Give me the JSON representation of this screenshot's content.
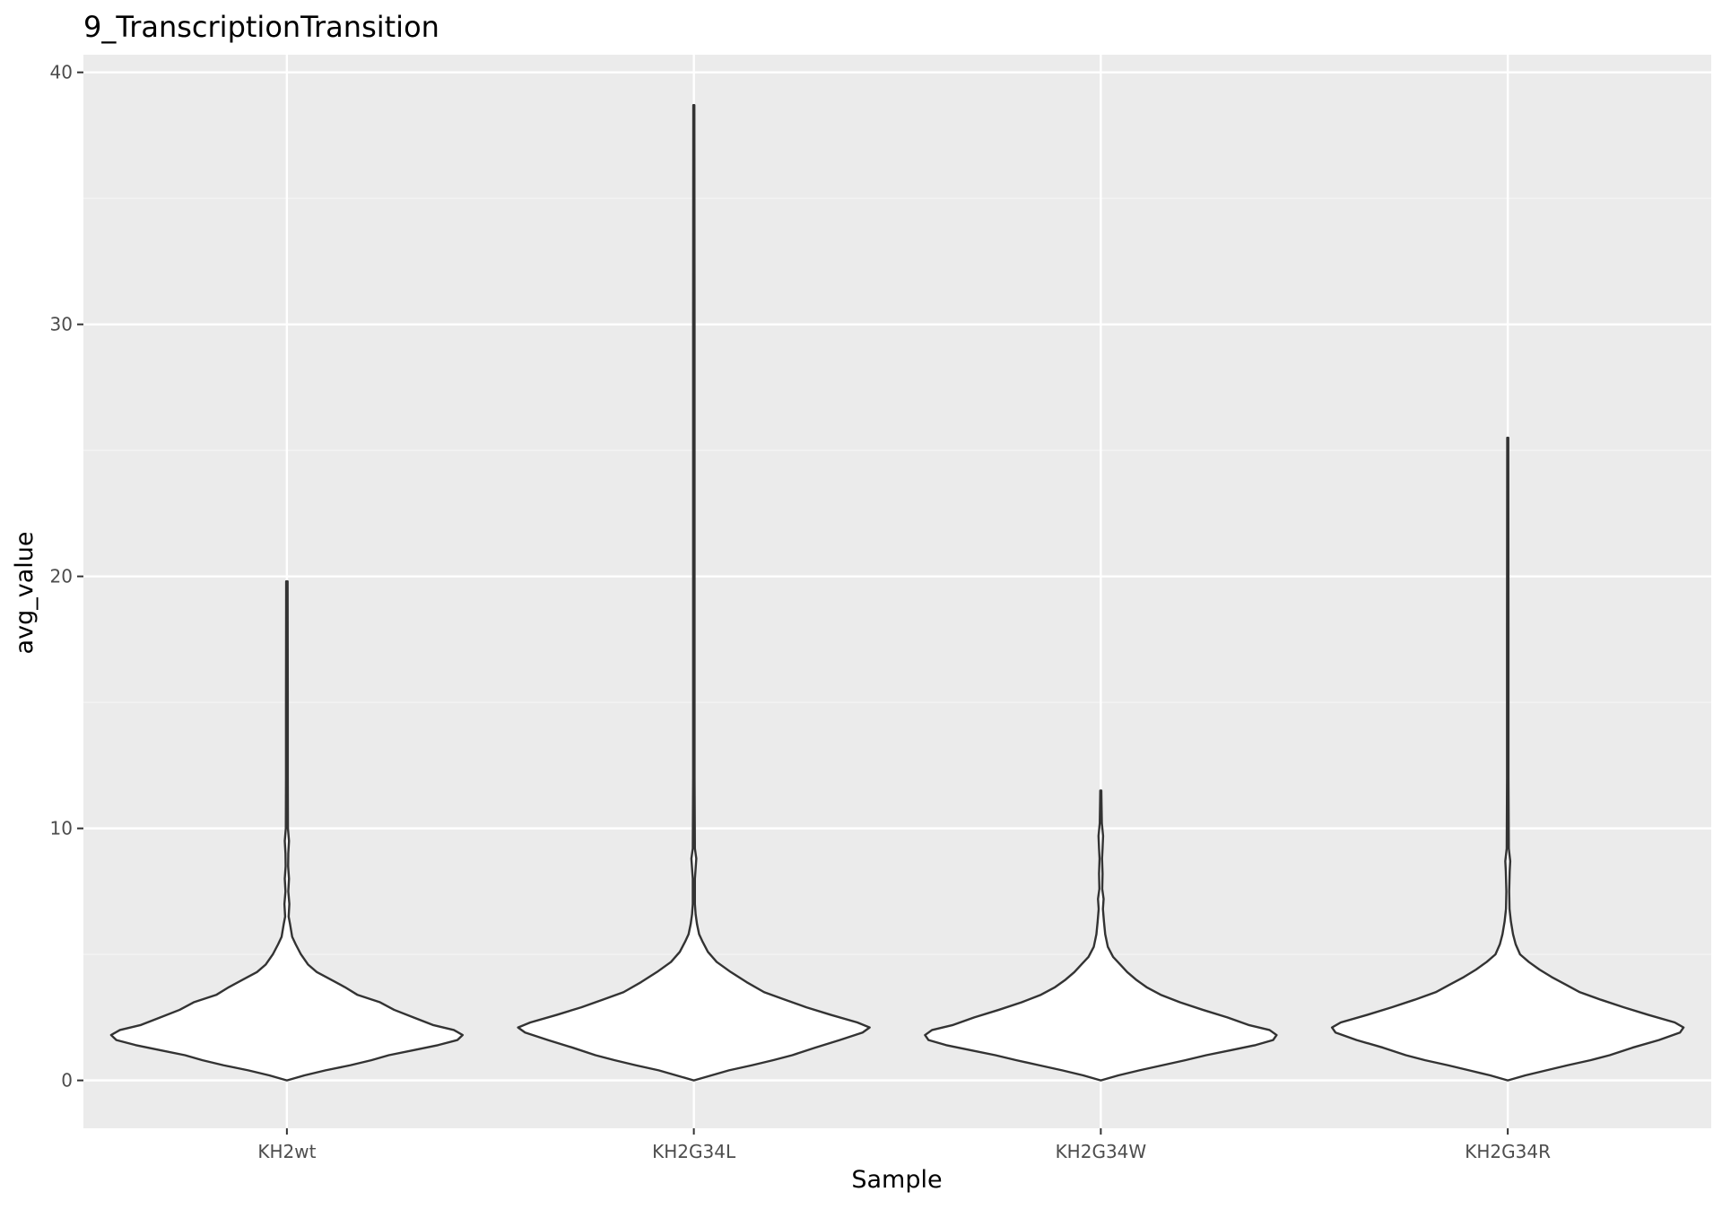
{
  "chart_data": {
    "type": "violin",
    "title": "9_TranscriptionTransition",
    "xlabel": "Sample",
    "ylabel": "avg_value",
    "categories": [
      "KH2wt",
      "KH2G34L",
      "KH2G34W",
      "KH2G34R"
    ],
    "ylim": [
      -1.9,
      40.7
    ],
    "yticks": [
      0,
      10,
      20,
      30,
      40
    ],
    "grid": true,
    "legend": "none",
    "colors": {
      "panel": "#ebebeb",
      "grid_major": "#ffffff",
      "grid_minor": "#f5f5f5",
      "violin_fill": "#ffffff",
      "violin_stroke": "#333333",
      "tick_text": "#4d4d4d",
      "tick_mark": "#333333"
    },
    "series": [
      {
        "category": "KH2wt",
        "min": 0.0,
        "max": 19.8,
        "density": [
          [
            0.0,
            0.0
          ],
          [
            0.2,
            0.1
          ],
          [
            0.4,
            0.22
          ],
          [
            0.6,
            0.36
          ],
          [
            0.8,
            0.48
          ],
          [
            1.0,
            0.58
          ],
          [
            1.2,
            0.72
          ],
          [
            1.4,
            0.86
          ],
          [
            1.6,
            0.97
          ],
          [
            1.8,
            1.0
          ],
          [
            2.0,
            0.95
          ],
          [
            2.2,
            0.83
          ],
          [
            2.5,
            0.72
          ],
          [
            2.8,
            0.61
          ],
          [
            3.1,
            0.53
          ],
          [
            3.4,
            0.4
          ],
          [
            3.7,
            0.33
          ],
          [
            4.0,
            0.25
          ],
          [
            4.3,
            0.17
          ],
          [
            4.6,
            0.12
          ],
          [
            5.0,
            0.08
          ],
          [
            5.4,
            0.05
          ],
          [
            5.7,
            0.03
          ],
          [
            6.2,
            0.018
          ],
          [
            6.5,
            0.01
          ],
          [
            7.0,
            0.014
          ],
          [
            7.5,
            0.008
          ],
          [
            8.0,
            0.012
          ],
          [
            8.5,
            0.007
          ],
          [
            9.0,
            0.008
          ],
          [
            9.5,
            0.012
          ],
          [
            10.0,
            0.006
          ],
          [
            12.0,
            0.005
          ],
          [
            15.0,
            0.005
          ],
          [
            19.8,
            0.004
          ]
        ]
      },
      {
        "category": "KH2G34L",
        "min": 0.0,
        "max": 38.7,
        "density": [
          [
            0.0,
            0.0
          ],
          [
            0.2,
            0.1
          ],
          [
            0.4,
            0.2
          ],
          [
            0.6,
            0.33
          ],
          [
            0.8,
            0.45
          ],
          [
            1.0,
            0.56
          ],
          [
            1.3,
            0.69
          ],
          [
            1.6,
            0.83
          ],
          [
            1.9,
            0.96
          ],
          [
            2.1,
            1.0
          ],
          [
            2.3,
            0.93
          ],
          [
            2.6,
            0.78
          ],
          [
            2.9,
            0.64
          ],
          [
            3.2,
            0.52
          ],
          [
            3.5,
            0.4
          ],
          [
            3.9,
            0.3
          ],
          [
            4.3,
            0.21
          ],
          [
            4.7,
            0.13
          ],
          [
            5.1,
            0.08
          ],
          [
            5.5,
            0.05
          ],
          [
            5.8,
            0.03
          ],
          [
            6.2,
            0.018
          ],
          [
            6.6,
            0.01
          ],
          [
            7.0,
            0.006
          ],
          [
            8.0,
            0.006
          ],
          [
            8.8,
            0.014
          ],
          [
            9.2,
            0.006
          ],
          [
            12.0,
            0.004
          ],
          [
            20.0,
            0.004
          ],
          [
            30.0,
            0.004
          ],
          [
            38.7,
            0.003
          ]
        ]
      },
      {
        "category": "KH2G34W",
        "min": 0.0,
        "max": 11.5,
        "density": [
          [
            0.0,
            0.0
          ],
          [
            0.2,
            0.1
          ],
          [
            0.4,
            0.22
          ],
          [
            0.6,
            0.35
          ],
          [
            0.8,
            0.48
          ],
          [
            1.0,
            0.6
          ],
          [
            1.2,
            0.74
          ],
          [
            1.4,
            0.88
          ],
          [
            1.6,
            0.98
          ],
          [
            1.8,
            1.0
          ],
          [
            2.0,
            0.96
          ],
          [
            2.2,
            0.84
          ],
          [
            2.5,
            0.72
          ],
          [
            2.8,
            0.58
          ],
          [
            3.1,
            0.45
          ],
          [
            3.4,
            0.34
          ],
          [
            3.7,
            0.26
          ],
          [
            4.0,
            0.2
          ],
          [
            4.3,
            0.15
          ],
          [
            4.6,
            0.11
          ],
          [
            4.9,
            0.07
          ],
          [
            5.3,
            0.04
          ],
          [
            5.8,
            0.025
          ],
          [
            6.3,
            0.018
          ],
          [
            6.8,
            0.012
          ],
          [
            7.2,
            0.016
          ],
          [
            7.6,
            0.008
          ],
          [
            8.2,
            0.01
          ],
          [
            8.8,
            0.007
          ],
          [
            9.2,
            0.01
          ],
          [
            9.7,
            0.013
          ],
          [
            10.2,
            0.006
          ],
          [
            11.0,
            0.004
          ],
          [
            11.5,
            0.003
          ]
        ]
      },
      {
        "category": "KH2G34R",
        "min": 0.0,
        "max": 25.5,
        "density": [
          [
            0.0,
            0.0
          ],
          [
            0.2,
            0.1
          ],
          [
            0.4,
            0.22
          ],
          [
            0.6,
            0.34
          ],
          [
            0.8,
            0.47
          ],
          [
            1.0,
            0.58
          ],
          [
            1.3,
            0.71
          ],
          [
            1.6,
            0.86
          ],
          [
            1.9,
            0.98
          ],
          [
            2.1,
            1.0
          ],
          [
            2.3,
            0.95
          ],
          [
            2.6,
            0.8
          ],
          [
            2.9,
            0.66
          ],
          [
            3.2,
            0.53
          ],
          [
            3.5,
            0.41
          ],
          [
            3.8,
            0.33
          ],
          [
            4.1,
            0.25
          ],
          [
            4.4,
            0.18
          ],
          [
            4.7,
            0.12
          ],
          [
            5.0,
            0.07
          ],
          [
            5.4,
            0.045
          ],
          [
            5.8,
            0.03
          ],
          [
            6.3,
            0.018
          ],
          [
            6.8,
            0.01
          ],
          [
            7.5,
            0.008
          ],
          [
            8.3,
            0.011
          ],
          [
            8.7,
            0.014
          ],
          [
            9.2,
            0.006
          ],
          [
            12.0,
            0.004
          ],
          [
            18.0,
            0.004
          ],
          [
            25.5,
            0.003
          ]
        ]
      }
    ]
  }
}
